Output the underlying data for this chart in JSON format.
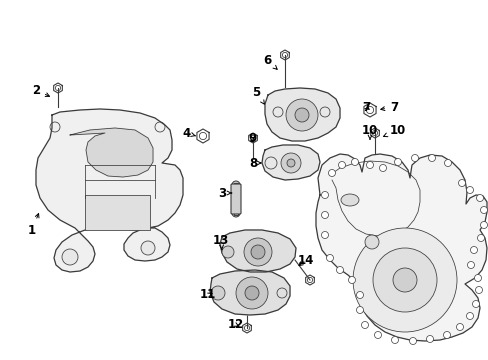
{
  "bg_color": "#ffffff",
  "line_color": "#3a3a3a",
  "text_color": "#000000",
  "lw": 0.9,
  "lw_thin": 0.55,
  "figsize": [
    4.89,
    3.6
  ],
  "dpi": 100,
  "xlim": [
    0,
    489
  ],
  "ylim": [
    0,
    360
  ]
}
